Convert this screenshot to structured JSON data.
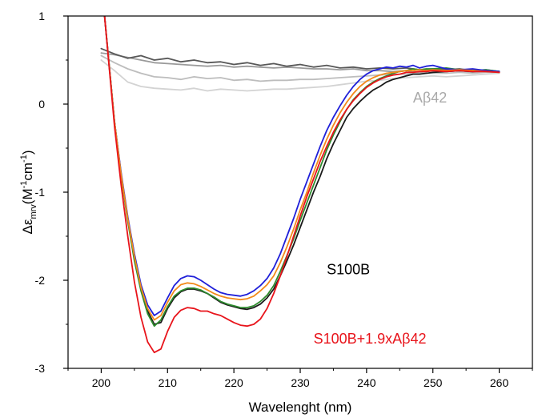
{
  "chart_data": {
    "type": "line",
    "xlabel": "Wavelenght (nm)",
    "ylabel": {
      "delta": "Δ",
      "epsilon": "ε",
      "subscript": "mrv",
      "open": "(M",
      "sup1": "-1",
      "middle": "cm",
      "sup2": "-1",
      "close": ")"
    },
    "xlim": [
      195,
      265
    ],
    "ylim": [
      -3,
      1
    ],
    "xticks": [
      "200",
      "210",
      "220",
      "230",
      "240",
      "250",
      "260"
    ],
    "yticks": [
      "1",
      "0",
      "-1",
      "-2",
      "-3"
    ],
    "grid": false,
    "annotations": [
      {
        "text": "Aβ42",
        "color": "#a9a9a9",
        "x": 247,
        "y": 0.02
      },
      {
        "text": "S100B",
        "color": "#000000",
        "x": 234,
        "y": -1.93
      },
      {
        "text": "S100B+1.9xAβ42",
        "color": "#e8141b",
        "x": 232,
        "y": -2.72
      }
    ],
    "series": [
      {
        "color": "#9a9a9a",
        "x": [
          200,
          202,
          204,
          206,
          208,
          210,
          212,
          214,
          216,
          218,
          220,
          222,
          224,
          226,
          228,
          230,
          232,
          234,
          236,
          238,
          240,
          242,
          244,
          246,
          248,
          250,
          252,
          254,
          256,
          258,
          260
        ],
        "y": [
          0.58,
          0.56,
          0.53,
          0.5,
          0.47,
          0.46,
          0.45,
          0.44,
          0.43,
          0.44,
          0.42,
          0.43,
          0.42,
          0.41,
          0.42,
          0.41,
          0.4,
          0.4,
          0.39,
          0.4,
          0.38,
          0.38,
          0.37,
          0.38,
          0.36,
          0.38,
          0.37,
          0.38,
          0.36,
          0.37,
          0.36
        ]
      },
      {
        "color": "#585858",
        "x": [
          200,
          202,
          204,
          206,
          208,
          210,
          212,
          214,
          216,
          218,
          220,
          222,
          224,
          226,
          228,
          230,
          232,
          234,
          236,
          238,
          240,
          242,
          244,
          246,
          248,
          250,
          252,
          254,
          256,
          258,
          260
        ],
        "y": [
          0.63,
          0.57,
          0.52,
          0.55,
          0.5,
          0.52,
          0.48,
          0.5,
          0.47,
          0.48,
          0.45,
          0.47,
          0.44,
          0.46,
          0.43,
          0.45,
          0.42,
          0.44,
          0.41,
          0.42,
          0.4,
          0.41,
          0.4,
          0.41,
          0.39,
          0.4,
          0.39,
          0.4,
          0.38,
          0.39,
          0.37
        ]
      },
      {
        "color": "#bdbdbd",
        "x": [
          200,
          202,
          204,
          206,
          208,
          210,
          212,
          214,
          216,
          218,
          220,
          222,
          224,
          226,
          228,
          230,
          232,
          234,
          236,
          238,
          240,
          242,
          244,
          246,
          248,
          250,
          252,
          254,
          256,
          258,
          260
        ],
        "y": [
          0.55,
          0.47,
          0.4,
          0.35,
          0.31,
          0.3,
          0.28,
          0.31,
          0.29,
          0.3,
          0.27,
          0.28,
          0.26,
          0.27,
          0.27,
          0.28,
          0.28,
          0.29,
          0.3,
          0.31,
          0.32,
          0.33,
          0.34,
          0.34,
          0.35,
          0.35,
          0.35,
          0.36,
          0.35,
          0.36,
          0.36
        ]
      },
      {
        "color": "#d3d3d3",
        "x": [
          200,
          202,
          204,
          206,
          208,
          210,
          212,
          214,
          216,
          218,
          220,
          222,
          224,
          226,
          228,
          230,
          232,
          234,
          236,
          238,
          240,
          242,
          244,
          246,
          248,
          250,
          252,
          254,
          256,
          258,
          260
        ],
        "y": [
          0.5,
          0.38,
          0.25,
          0.2,
          0.18,
          0.17,
          0.16,
          0.18,
          0.15,
          0.17,
          0.16,
          0.15,
          0.16,
          0.17,
          0.17,
          0.18,
          0.19,
          0.2,
          0.22,
          0.24,
          0.26,
          0.27,
          0.29,
          0.3,
          0.31,
          0.32,
          0.31,
          0.32,
          0.33,
          0.34,
          0.35
        ]
      },
      {
        "color": "#1a1a1a",
        "x": [
          200.5,
          202,
          203,
          204,
          205,
          206,
          207,
          208,
          209,
          210,
          211,
          212,
          213,
          214,
          215,
          216,
          217,
          218,
          219,
          220,
          221,
          222,
          223,
          224,
          225,
          226,
          227,
          228,
          229,
          230,
          231,
          232,
          233,
          234,
          235,
          236,
          237,
          238,
          239,
          240,
          241,
          242,
          243,
          244,
          245,
          246,
          247,
          248,
          249,
          250,
          252,
          254,
          256,
          258,
          260
        ],
        "y": [
          1.0,
          -0.2,
          -0.8,
          -1.3,
          -1.75,
          -2.1,
          -2.35,
          -2.5,
          -2.48,
          -2.32,
          -2.2,
          -2.13,
          -2.1,
          -2.1,
          -2.12,
          -2.15,
          -2.2,
          -2.25,
          -2.28,
          -2.3,
          -2.32,
          -2.33,
          -2.31,
          -2.27,
          -2.2,
          -2.1,
          -1.95,
          -1.78,
          -1.6,
          -1.4,
          -1.2,
          -1.0,
          -0.82,
          -0.62,
          -0.45,
          -0.3,
          -0.15,
          -0.05,
          0.03,
          0.1,
          0.16,
          0.2,
          0.25,
          0.28,
          0.3,
          0.32,
          0.34,
          0.34,
          0.35,
          0.36,
          0.37,
          0.38,
          0.37,
          0.38,
          0.37
        ]
      },
      {
        "color": "#2e8b2e",
        "x": [
          200.5,
          202,
          203,
          204,
          205,
          206,
          207,
          208,
          209,
          210,
          211,
          212,
          213,
          214,
          215,
          216,
          217,
          218,
          219,
          220,
          221,
          222,
          223,
          224,
          225,
          226,
          227,
          228,
          229,
          230,
          231,
          232,
          233,
          234,
          235,
          236,
          237,
          238,
          239,
          240,
          241,
          242,
          243,
          244,
          245,
          246,
          247,
          248,
          249,
          250,
          252,
          254,
          256,
          258,
          260
        ],
        "y": [
          1.0,
          -0.2,
          -0.82,
          -1.33,
          -1.78,
          -2.12,
          -2.38,
          -2.52,
          -2.45,
          -2.3,
          -2.18,
          -2.12,
          -2.09,
          -2.09,
          -2.11,
          -2.15,
          -2.19,
          -2.24,
          -2.27,
          -2.29,
          -2.31,
          -2.31,
          -2.29,
          -2.24,
          -2.17,
          -2.06,
          -1.9,
          -1.72,
          -1.53,
          -1.32,
          -1.12,
          -0.92,
          -0.72,
          -0.52,
          -0.35,
          -0.2,
          -0.06,
          0.05,
          0.13,
          0.2,
          0.25,
          0.29,
          0.32,
          0.35,
          0.37,
          0.38,
          0.4,
          0.39,
          0.4,
          0.4,
          0.41,
          0.39,
          0.38,
          0.39,
          0.37
        ]
      },
      {
        "color": "#1f1fd9",
        "x": [
          200.5,
          202,
          203,
          204,
          205,
          206,
          207,
          208,
          209,
          210,
          211,
          212,
          213,
          214,
          215,
          216,
          217,
          218,
          219,
          220,
          221,
          222,
          223,
          224,
          225,
          226,
          227,
          228,
          229,
          230,
          231,
          232,
          233,
          234,
          235,
          236,
          237,
          238,
          239,
          240,
          241,
          242,
          243,
          244,
          245,
          246,
          247,
          248,
          249,
          250,
          252,
          254,
          256,
          258,
          260
        ],
        "y": [
          1.0,
          -0.2,
          -0.78,
          -1.28,
          -1.7,
          -2.05,
          -2.28,
          -2.4,
          -2.35,
          -2.2,
          -2.06,
          -1.98,
          -1.95,
          -1.96,
          -2.0,
          -2.05,
          -2.1,
          -2.14,
          -2.16,
          -2.17,
          -2.18,
          -2.16,
          -2.12,
          -2.06,
          -1.98,
          -1.86,
          -1.7,
          -1.5,
          -1.3,
          -1.08,
          -0.88,
          -0.68,
          -0.48,
          -0.3,
          -0.15,
          -0.02,
          0.1,
          0.2,
          0.28,
          0.34,
          0.38,
          0.4,
          0.42,
          0.41,
          0.43,
          0.42,
          0.44,
          0.41,
          0.43,
          0.44,
          0.4,
          0.39,
          0.4,
          0.38,
          0.37
        ]
      },
      {
        "color": "#f28a1a",
        "x": [
          200.5,
          202,
          203,
          204,
          205,
          206,
          207,
          208,
          209,
          210,
          211,
          212,
          213,
          214,
          215,
          216,
          217,
          218,
          219,
          220,
          221,
          222,
          223,
          224,
          225,
          226,
          227,
          228,
          229,
          230,
          231,
          232,
          233,
          234,
          235,
          236,
          237,
          238,
          239,
          240,
          241,
          242,
          243,
          244,
          245,
          246,
          247,
          248,
          249,
          250,
          252,
          254,
          256,
          258,
          260
        ],
        "y": [
          1.0,
          -0.2,
          -0.8,
          -1.3,
          -1.73,
          -2.08,
          -2.32,
          -2.45,
          -2.4,
          -2.25,
          -2.12,
          -2.05,
          -2.03,
          -2.04,
          -2.07,
          -2.11,
          -2.15,
          -2.18,
          -2.2,
          -2.21,
          -2.22,
          -2.21,
          -2.18,
          -2.12,
          -2.05,
          -1.95,
          -1.8,
          -1.62,
          -1.42,
          -1.2,
          -1.0,
          -0.78,
          -0.58,
          -0.4,
          -0.24,
          -0.1,
          0.02,
          0.12,
          0.2,
          0.26,
          0.3,
          0.33,
          0.35,
          0.36,
          0.37,
          0.38,
          0.38,
          0.39,
          0.38,
          0.39,
          0.38,
          0.39,
          0.38,
          0.37,
          0.36
        ]
      },
      {
        "color": "#e8141b",
        "x": [
          200.5,
          202,
          203,
          204,
          205,
          206,
          207,
          208,
          209,
          210,
          211,
          212,
          213,
          214,
          215,
          216,
          217,
          218,
          219,
          220,
          221,
          222,
          223,
          224,
          225,
          226,
          227,
          228,
          229,
          230,
          231,
          232,
          233,
          234,
          235,
          236,
          237,
          238,
          239,
          240,
          241,
          242,
          243,
          244,
          245,
          246,
          247,
          248,
          249,
          250,
          252,
          254,
          256,
          258,
          260
        ],
        "y": [
          1.0,
          -0.25,
          -0.92,
          -1.5,
          -2.02,
          -2.42,
          -2.7,
          -2.82,
          -2.78,
          -2.58,
          -2.42,
          -2.34,
          -2.31,
          -2.32,
          -2.35,
          -2.35,
          -2.38,
          -2.4,
          -2.44,
          -2.48,
          -2.51,
          -2.52,
          -2.5,
          -2.44,
          -2.32,
          -2.15,
          -1.95,
          -1.73,
          -1.5,
          -1.27,
          -1.05,
          -0.85,
          -0.65,
          -0.48,
          -0.32,
          -0.18,
          -0.06,
          0.04,
          0.12,
          0.19,
          0.24,
          0.28,
          0.31,
          0.33,
          0.34,
          0.36,
          0.36,
          0.37,
          0.37,
          0.38,
          0.37,
          0.38,
          0.37,
          0.37,
          0.36
        ]
      }
    ]
  }
}
